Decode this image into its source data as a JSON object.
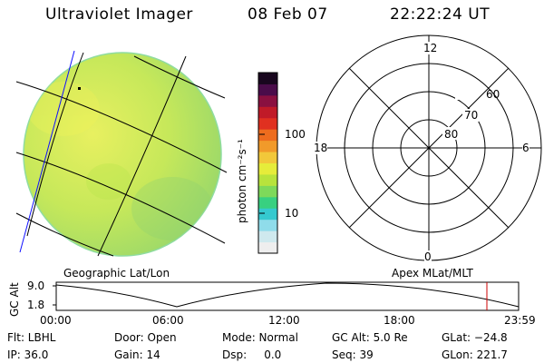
{
  "header": {
    "title": "Ultraviolet Imager",
    "date": "08 Feb 07",
    "time": "22:22:24 UT"
  },
  "colorbar": {
    "unit_label": "photon cm⁻²s⁻¹",
    "ticks": [
      "100",
      "10"
    ],
    "colors": [
      "#eeeeee",
      "#cfe9ee",
      "#8fdcea",
      "#35c9cf",
      "#38d080",
      "#7ed95a",
      "#b8e33c",
      "#e6ec3a",
      "#f2c83a",
      "#f19a2a",
      "#ee6c1e",
      "#e03020",
      "#c01a28",
      "#8a1040",
      "#4a0c4a",
      "#18061e"
    ]
  },
  "polar_plot": {
    "hour_labels": [
      "12",
      "18",
      "6",
      "0"
    ],
    "lat_labels": [
      "60",
      "70",
      "80"
    ]
  },
  "map": {
    "image_fill": "#c8ea5a"
  },
  "projection_labels": {
    "left": "Geographic Lat/Lon",
    "right": "Apex MLat/MLT"
  },
  "altitude_plot": {
    "ylabel": "GC Alt",
    "yticks": [
      "9.0",
      "1.8"
    ],
    "xticks": [
      "00:00",
      "06:00",
      "12:00",
      "18:00",
      "23:59"
    ],
    "marker_color": "#cc0000"
  },
  "status": {
    "row1": [
      "Flt: LBHL",
      "Door: Open",
      "Mode: Normal",
      "GC Alt: 5.0 Re",
      "GLat: −24.8"
    ],
    "row2": [
      "IP: 36.0",
      "Gain: 14",
      "Dsp:     0.0",
      "Seq: 39",
      "GLon: 221.7"
    ]
  }
}
